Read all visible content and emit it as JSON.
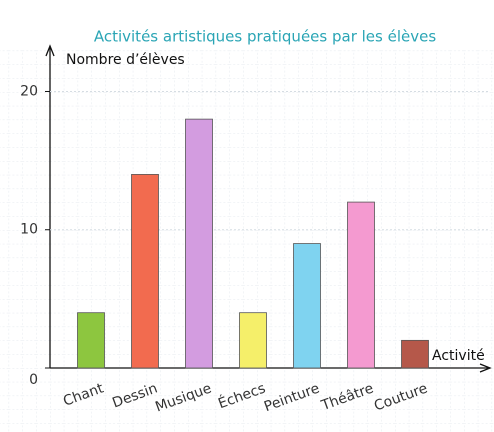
{
  "chart_data": {
    "type": "bar",
    "title": "Activités artistiques pratiquées par les élèves",
    "y_label": "Nombre d’élèves",
    "x_label": "Activité",
    "categories": [
      "Chant",
      "Dessin",
      "Musique",
      "Échecs",
      "Peinture",
      "Théâtre",
      "Couture"
    ],
    "values": [
      4,
      14,
      18,
      4,
      9,
      12,
      2
    ],
    "colors": [
      "#8dc63f",
      "#f26b4f",
      "#d39ce0",
      "#f5ef6a",
      "#7fd3f0",
      "#f49ad0",
      "#b5584a"
    ],
    "ylim": [
      0,
      23
    ],
    "yticks": [
      0,
      10,
      20
    ],
    "grid": true
  }
}
